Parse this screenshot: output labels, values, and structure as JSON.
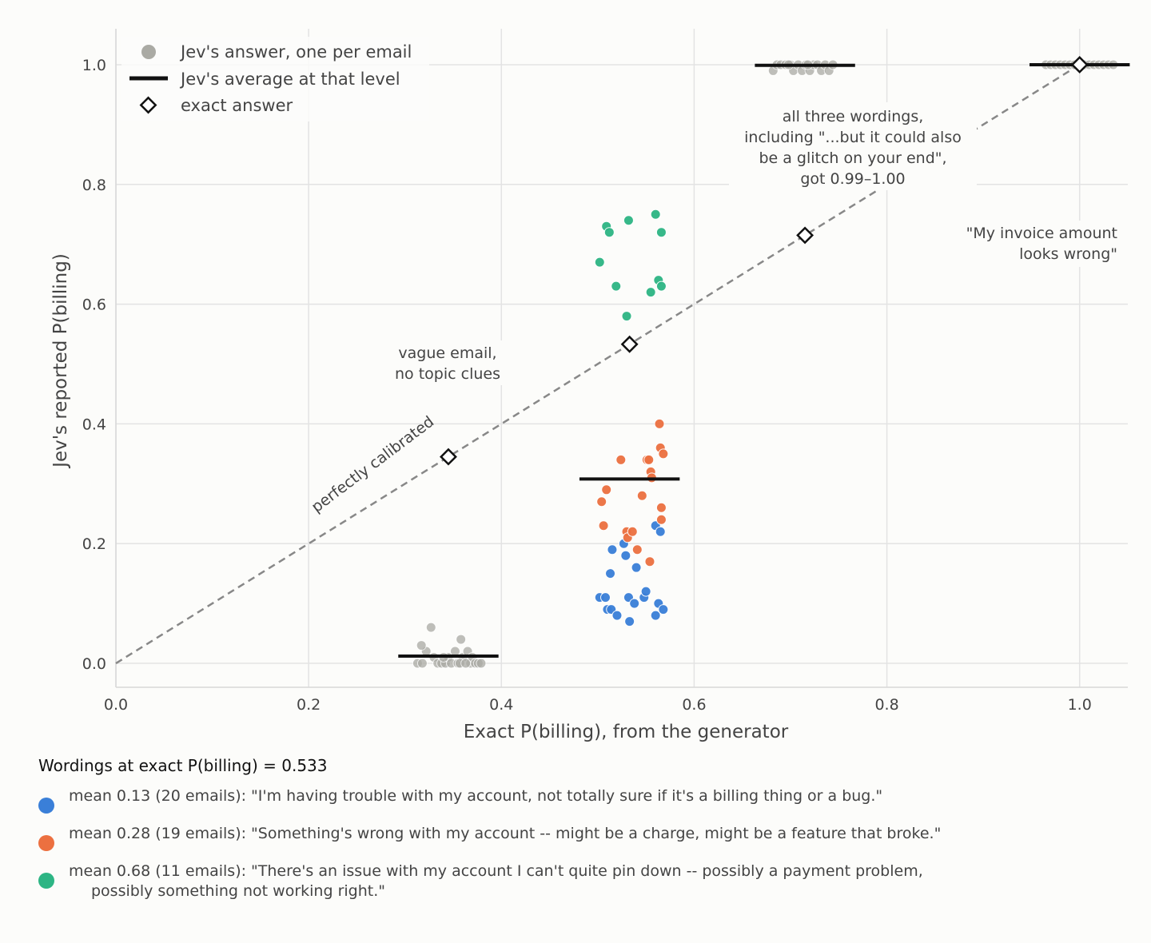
{
  "chart_data": {
    "type": "scatter",
    "xlabel": "Exact P(billing), from the generator",
    "ylabel": "Jev's reported P(billing)",
    "xlim": [
      0.0,
      1.05
    ],
    "ylim": [
      -0.04,
      1.06
    ],
    "x_ticks": [
      "0.0",
      "0.2",
      "0.4",
      "0.6",
      "0.8",
      "1.0"
    ],
    "y_ticks": [
      "0.0",
      "0.2",
      "0.4",
      "0.6",
      "0.8",
      "1.0"
    ],
    "grid": true,
    "legend_position": "top-left",
    "legend": {
      "answers": "Jev's answer, one per email",
      "average": "Jev's average at that level",
      "exact": "exact answer"
    },
    "diagonal_label": "perfectly calibrated",
    "exact_points": [
      {
        "x": 0.345,
        "y": 0.345
      },
      {
        "x": 0.533,
        "y": 0.533
      },
      {
        "x": 0.715,
        "y": 0.715
      },
      {
        "x": 1.0,
        "y": 1.0
      }
    ],
    "averages": [
      {
        "x": 0.345,
        "y": 0.012
      },
      {
        "x": 0.533,
        "y": 0.308
      },
      {
        "x": 0.715,
        "y": 0.999
      },
      {
        "x": 1.0,
        "y": 1.0
      }
    ],
    "series": [
      {
        "color": "#aaaaa4",
        "points": [
          [
            0.313,
            0.0
          ],
          [
            0.318,
            0.0
          ],
          [
            0.322,
            0.02
          ],
          [
            0.327,
            0.06
          ],
          [
            0.33,
            0.01
          ],
          [
            0.334,
            0.0
          ],
          [
            0.338,
            0.0
          ],
          [
            0.342,
            0.0
          ],
          [
            0.345,
            0.01
          ],
          [
            0.348,
            0.0
          ],
          [
            0.352,
            0.02
          ],
          [
            0.355,
            0.0
          ],
          [
            0.358,
            0.04
          ],
          [
            0.36,
            0.01
          ],
          [
            0.365,
            0.02
          ],
          [
            0.368,
            0.0
          ],
          [
            0.37,
            0.01
          ],
          [
            0.373,
            0.0
          ],
          [
            0.376,
            0.0
          ],
          [
            0.379,
            0.0
          ],
          [
            0.317,
            0.03
          ],
          [
            0.34,
            0.01
          ],
          [
            0.357,
            0.0
          ],
          [
            0.363,
            0.0
          ]
        ]
      },
      {
        "color": "#aaaaa4",
        "points": [
          [
            0.682,
            0.99
          ],
          [
            0.686,
            1.0
          ],
          [
            0.69,
            1.0
          ],
          [
            0.695,
            1.0
          ],
          [
            0.7,
            1.0
          ],
          [
            0.703,
            0.99
          ],
          [
            0.708,
            1.0
          ],
          [
            0.712,
            0.99
          ],
          [
            0.716,
            1.0
          ],
          [
            0.72,
            0.99
          ],
          [
            0.724,
            1.0
          ],
          [
            0.728,
            1.0
          ],
          [
            0.732,
            0.99
          ],
          [
            0.736,
            1.0
          ],
          [
            0.74,
            0.99
          ],
          [
            0.744,
            1.0
          ],
          [
            0.698,
            1.0
          ],
          [
            0.718,
            1.0
          ]
        ]
      },
      {
        "color": "#aaaaa4",
        "points": [
          [
            0.965,
            1.0
          ],
          [
            0.97,
            1.0
          ],
          [
            0.975,
            1.0
          ],
          [
            0.98,
            1.0
          ],
          [
            0.985,
            1.0
          ],
          [
            0.99,
            1.0
          ],
          [
            0.995,
            1.0
          ],
          [
            1.005,
            1.0
          ],
          [
            1.01,
            1.0
          ],
          [
            1.015,
            1.0
          ],
          [
            1.02,
            1.0
          ],
          [
            1.025,
            1.0
          ],
          [
            1.03,
            1.0
          ],
          [
            1.035,
            1.0
          ]
        ]
      },
      {
        "color": "#3a7fd8",
        "points": [
          [
            0.502,
            0.11
          ],
          [
            0.508,
            0.11
          ],
          [
            0.51,
            0.09
          ],
          [
            0.514,
            0.09
          ],
          [
            0.513,
            0.15
          ],
          [
            0.515,
            0.19
          ],
          [
            0.52,
            0.08
          ],
          [
            0.527,
            0.2
          ],
          [
            0.529,
            0.18
          ],
          [
            0.532,
            0.11
          ],
          [
            0.533,
            0.07
          ],
          [
            0.538,
            0.1
          ],
          [
            0.54,
            0.16
          ],
          [
            0.548,
            0.11
          ],
          [
            0.55,
            0.12
          ],
          [
            0.56,
            0.23
          ],
          [
            0.56,
            0.08
          ],
          [
            0.563,
            0.1
          ],
          [
            0.565,
            0.22
          ],
          [
            0.568,
            0.09
          ]
        ]
      },
      {
        "color": "#ec7040",
        "points": [
          [
            0.504,
            0.27
          ],
          [
            0.506,
            0.23
          ],
          [
            0.509,
            0.29
          ],
          [
            0.524,
            0.34
          ],
          [
            0.53,
            0.22
          ],
          [
            0.531,
            0.21
          ],
          [
            0.536,
            0.22
          ],
          [
            0.541,
            0.19
          ],
          [
            0.546,
            0.28
          ],
          [
            0.551,
            0.34
          ],
          [
            0.553,
            0.34
          ],
          [
            0.554,
            0.17
          ],
          [
            0.555,
            0.32
          ],
          [
            0.556,
            0.31
          ],
          [
            0.564,
            0.4
          ],
          [
            0.565,
            0.36
          ],
          [
            0.566,
            0.24
          ],
          [
            0.566,
            0.26
          ],
          [
            0.568,
            0.35
          ]
        ]
      },
      {
        "color": "#2db584",
        "points": [
          [
            0.502,
            0.67
          ],
          [
            0.509,
            0.73
          ],
          [
            0.512,
            0.72
          ],
          [
            0.519,
            0.63
          ],
          [
            0.53,
            0.58
          ],
          [
            0.532,
            0.74
          ],
          [
            0.555,
            0.62
          ],
          [
            0.56,
            0.75
          ],
          [
            0.563,
            0.64
          ],
          [
            0.566,
            0.72
          ],
          [
            0.566,
            0.63
          ]
        ]
      }
    ],
    "annotations": {
      "vague": [
        "vague email,",
        "no topic clues"
      ],
      "wordings": [
        "all three wordings,",
        "including \"...but it could also",
        "be a glitch on your end\",",
        "got 0.99–1.00"
      ],
      "invoice": [
        "\"My invoice amount",
        "looks wrong\""
      ]
    }
  },
  "wordings_panel": {
    "title": "Wordings at exact P(billing) = 0.533",
    "items": [
      {
        "color": "#3a7fd8",
        "text": "mean 0.13 (20 emails): \"I'm having trouble with my account, not totally sure if it's a billing thing or a bug.\""
      },
      {
        "color": "#ec7040",
        "text": "mean 0.28 (19 emails): \"Something's wrong with my account -- might be a charge, might be a feature that broke.\""
      },
      {
        "color": "#2db584",
        "text": "mean 0.68 (11 emails): \"There's an issue with my account I can't quite pin down -- possibly a payment problem, possibly something not working right.\""
      }
    ]
  }
}
